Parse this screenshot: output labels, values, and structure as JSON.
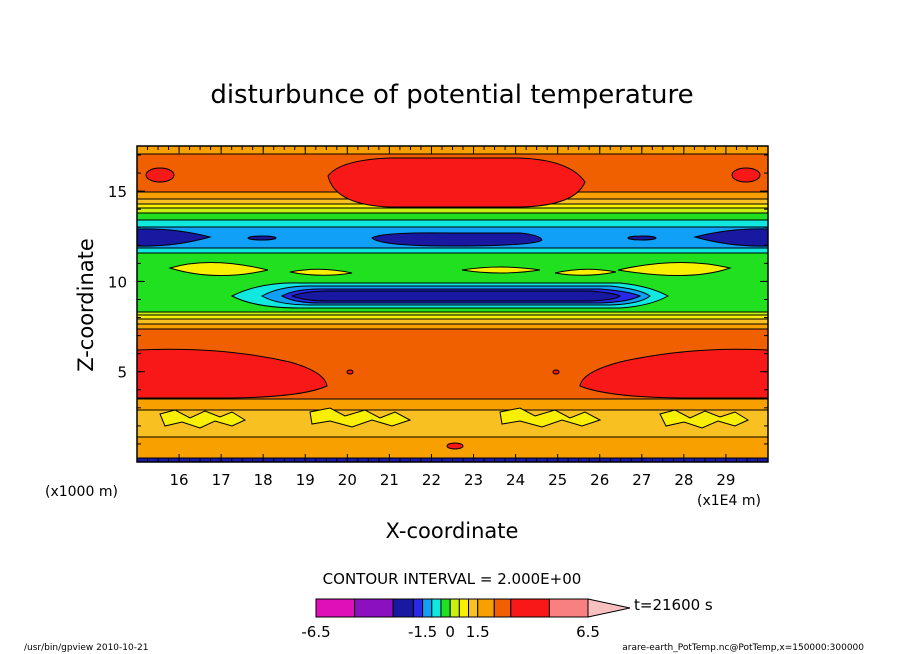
{
  "chart_data": {
    "type": "contour",
    "title": "disturbunce of potential temperature",
    "xlabel": "X-coordinate",
    "ylabel": "Z-coordinate",
    "x_unit_note": "(x1E4 m)",
    "y_unit_note": "(x1000 m)",
    "xlim": [
      15,
      30
    ],
    "ylim": [
      0,
      17.5
    ],
    "x_ticks": [
      16,
      17,
      18,
      19,
      20,
      21,
      22,
      23,
      24,
      25,
      26,
      27,
      28,
      29
    ],
    "y_ticks": [
      5,
      10,
      15
    ],
    "contour_interval_text": "CONTOUR INTERVAL = 2.000E+00",
    "time_text": "t=21600 s",
    "colorbar": {
      "labels": [
        "-6.5",
        "-1.5",
        "0",
        "1.5",
        "6.5"
      ],
      "label_values": [
        -6.5,
        -1.5,
        0,
        1.5,
        6.5
      ],
      "bounds": [
        -6.5,
        -5.0,
        -3.5,
        -2.0,
        -1.5,
        -1.0,
        -0.5,
        0,
        0.5,
        1.0,
        1.5,
        2.0,
        3.5,
        5.0,
        6.5
      ],
      "colors": [
        "#e010b8",
        "#8a10c0",
        "#1818a0",
        "#2828e8",
        "#10a0f8",
        "#10e8e0",
        "#20e020",
        "#c8f010",
        "#f8f000",
        "#f8c020",
        "#f8a000",
        "#f06000",
        "#f81818",
        "#f88080"
      ],
      "overflow_color": "#f8c0c0"
    },
    "fields": [
      {
        "description": "upper warm band",
        "z_range": [
          15.5,
          17.5
        ],
        "color": "#f06000"
      },
      {
        "description": "upper warm core",
        "x_range": [
          20.5,
          25.5
        ],
        "z_range": [
          14.5,
          16.5
        ],
        "color": "#f81818"
      },
      {
        "description": "cold band",
        "z_range": [
          12.2,
          13.2
        ],
        "color": "#10a0f8"
      },
      {
        "description": "neutral band",
        "z_range": [
          9.2,
          12.0
        ],
        "color": "#20e020"
      },
      {
        "description": "lower cold core",
        "x_range": [
          19.5,
          26
        ],
        "z_range": [
          9.5,
          10.5
        ],
        "color": "#1818a0"
      },
      {
        "description": "lower warm band",
        "z_range": [
          3,
          7
        ],
        "color": "#f06000"
      },
      {
        "description": "boundary layer",
        "z_range": [
          0.5,
          3
        ],
        "color": "#f8a000"
      }
    ]
  },
  "footer": {
    "left": "/usr/bin/gpview   2010-10-21",
    "right": "arare-earth_PotTemp.nc@PotTemp,x=150000:300000"
  }
}
